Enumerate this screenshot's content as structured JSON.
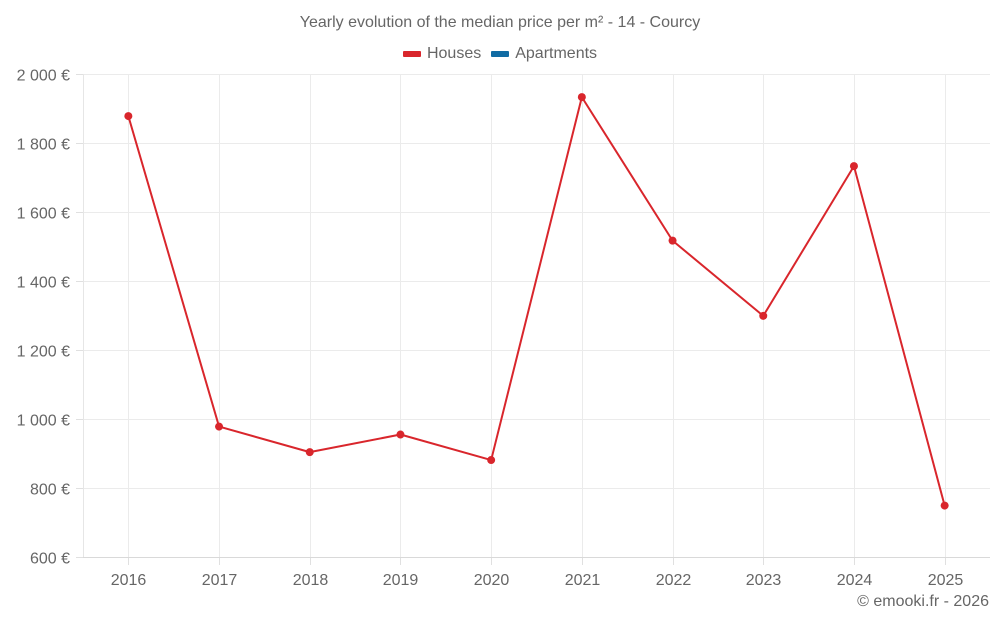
{
  "chart": {
    "title": "Yearly evolution of the median price per m² - 14 - Courcy",
    "legend": [
      {
        "label": "Houses",
        "color": "#d9262c"
      },
      {
        "label": "Apartments",
        "color": "#106ba3"
      }
    ],
    "credit": "© emooki.fr - 2026"
  },
  "chart_data": {
    "type": "line",
    "title": "Yearly evolution of the median price per m² - 14 - Courcy",
    "xlabel": "",
    "ylabel": "",
    "categories": [
      "2016",
      "2017",
      "2018",
      "2019",
      "2020",
      "2021",
      "2022",
      "2023",
      "2024",
      "2025"
    ],
    "series": [
      {
        "name": "Houses",
        "color": "#d9262c",
        "values": [
          1878,
          978,
          904,
          955,
          881,
          1933,
          1517,
          1299,
          1733,
          749
        ]
      },
      {
        "name": "Apartments",
        "color": "#106ba3",
        "values": []
      }
    ],
    "ylim": [
      600,
      2000
    ],
    "yticks": [
      600,
      800,
      1000,
      1200,
      1400,
      1600,
      1800,
      2000
    ],
    "ytick_labels": [
      "600 €",
      "800 €",
      "1 000 €",
      "1 200 €",
      "1 400 €",
      "1 600 €",
      "1 800 €",
      "2 000 €"
    ],
    "grid": true,
    "legend_position": "top"
  }
}
